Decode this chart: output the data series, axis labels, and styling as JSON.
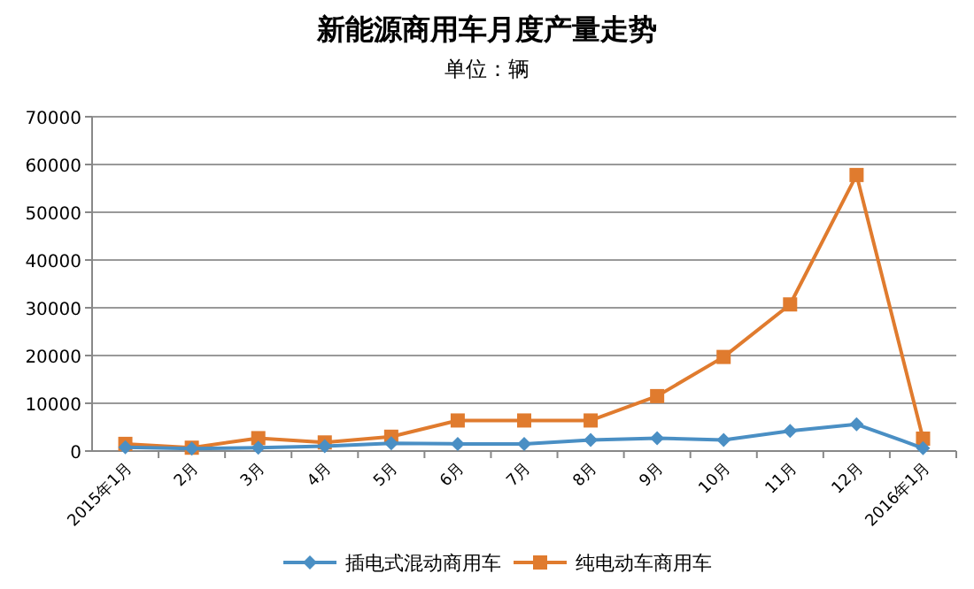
{
  "chart_data": {
    "type": "line",
    "title": "新能源商用车月度产量走势",
    "subtitle": "单位：辆",
    "categories": [
      "2015年1月",
      "2月",
      "3月",
      "4月",
      "5月",
      "6月",
      "7月",
      "8月",
      "9月",
      "10月",
      "11月",
      "12月",
      "2016年1月"
    ],
    "series": [
      {
        "name": "插电式混动商用车",
        "color": "#4a8fc4",
        "marker": "diamond",
        "values": [
          800,
          500,
          700,
          1000,
          1600,
          1500,
          1500,
          2300,
          2700,
          2300,
          4200,
          5600,
          600
        ]
      },
      {
        "name": "纯电动车商用车",
        "color": "#e07b2e",
        "marker": "square",
        "values": [
          1500,
          700,
          2700,
          1800,
          3000,
          6400,
          6400,
          6400,
          11500,
          19700,
          30700,
          57800,
          2600
        ]
      }
    ],
    "ylim": [
      0,
      70000
    ],
    "yticks": [
      0,
      10000,
      20000,
      30000,
      40000,
      50000,
      60000,
      70000
    ],
    "grid": "y",
    "legend": "bottom"
  }
}
